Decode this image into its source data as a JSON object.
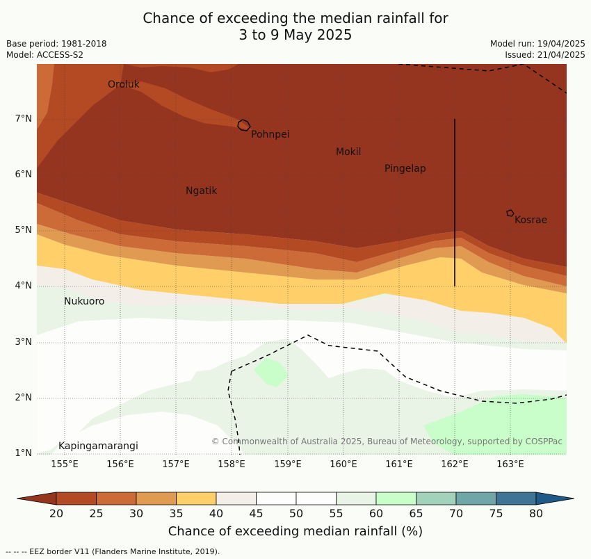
{
  "title": {
    "line1": "Chance of exceeding the median rainfall for",
    "line2": "3 to 9 May 2025"
  },
  "meta_left": {
    "base_period": "Base period: 1981-2018",
    "model": "Model: ACCESS-S2"
  },
  "meta_right": {
    "model_run": "Model run: 19/04/2025",
    "issued": "Issued: 21/04/2025"
  },
  "map": {
    "lat_labels": [
      "7°N",
      "6°N",
      "5°N",
      "4°N",
      "3°N",
      "2°N",
      "1°N"
    ],
    "lon_labels": [
      "155°E",
      "156°E",
      "157°E",
      "158°E",
      "159°E",
      "160°E",
      "161°E",
      "162°E",
      "163°E"
    ],
    "places": [
      "Oroluk",
      "Pohnpei",
      "Mokil",
      "Pingelap",
      "Ngatik",
      "Kosrae",
      "Nukuoro",
      "Kapingamarangi"
    ],
    "copyright": "© Commonwealth of Australia 2025, Bureau of Meteorology, supported by COSPPac"
  },
  "colorbar": {
    "ticks": [
      "20",
      "25",
      "30",
      "35",
      "40",
      "45",
      "50",
      "55",
      "60",
      "65",
      "70",
      "75",
      "80"
    ],
    "colors": [
      "#b34a24",
      "#cc6a38",
      "#e09a52",
      "#ffd06a",
      "#f3eee8",
      "#fdfdfb",
      "#fdfdfb",
      "#e9f3e6",
      "#c9fdc9",
      "#a2d2ba",
      "#6fa7a8",
      "#3e7596"
    ],
    "low_color": "#96351f",
    "high_color": "#1f5987",
    "label": "Chance of exceeding median rainfall (%)"
  },
  "credit": "-- -- -- EEZ border V11 (Flanders Marine Institute, 2019)."
}
